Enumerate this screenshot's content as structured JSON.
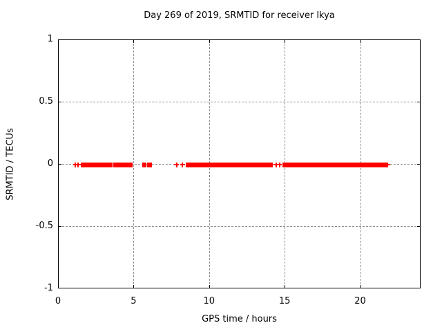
{
  "figure": {
    "title": "Day 269 of 2019, SRMTID for receiver lkya",
    "xlabel": "GPS time / hours",
    "ylabel": "SRMTID / TECUs"
  },
  "chart_data": {
    "type": "scatter",
    "title": "Day 269 of 2019, SRMTID for receiver lkya",
    "xlabel": "GPS time / hours",
    "ylabel": "SRMTID / TECUs",
    "xlim": [
      0,
      24
    ],
    "ylim": [
      -1,
      1
    ],
    "xticks": [
      0,
      5,
      10,
      15,
      20
    ],
    "xtick_labels": [
      "0",
      "5",
      "10",
      "15",
      "20"
    ],
    "yticks": [
      1,
      0.5,
      0,
      -0.5,
      -1
    ],
    "ytick_labels": [
      "1",
      "0.5",
      "0",
      "-0.5",
      "-1"
    ],
    "grid": true,
    "legend_position": "none",
    "marker": "plus",
    "marker_color": "#ff0000",
    "grid_color": "#909090",
    "frame_color": "#000000",
    "series": [
      {
        "name": "SRMTID",
        "y_value": 0,
        "dense_intervals_x_hours": [
          [
            1.45,
            3.55
          ],
          [
            3.62,
            4.9
          ],
          [
            5.55,
            5.8
          ],
          [
            5.86,
            6.17
          ],
          [
            8.4,
            14.15
          ],
          [
            14.8,
            21.7
          ]
        ],
        "isolated_points_x_hours": [
          1.1,
          1.28,
          7.8,
          8.2,
          14.38,
          14.62,
          21.78
        ]
      }
    ]
  }
}
